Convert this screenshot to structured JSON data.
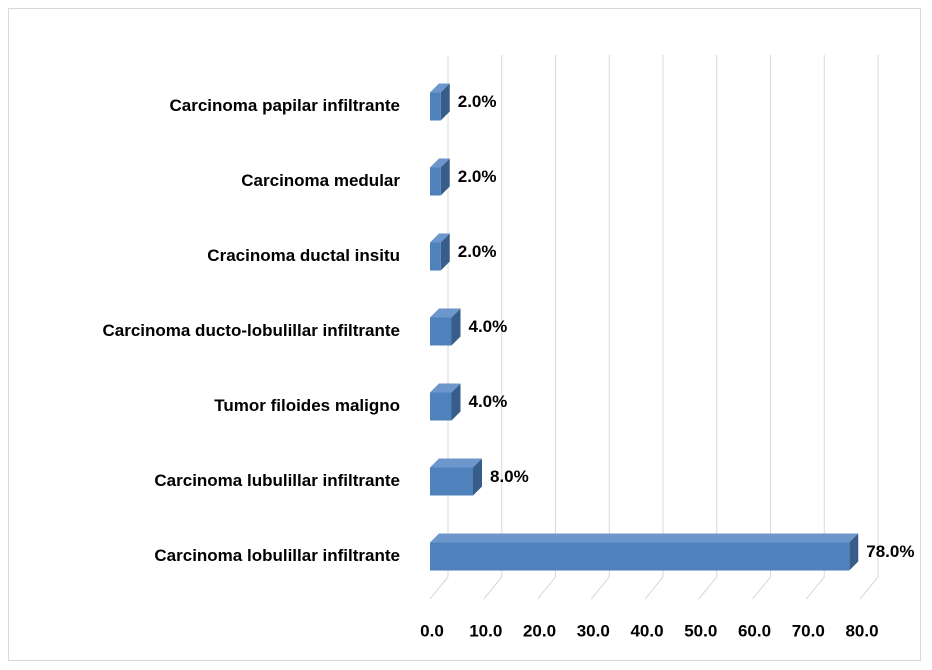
{
  "chart_data": {
    "type": "bar3d-horizontal",
    "categories": [
      "Carcinoma papilar infiltrante",
      "Carcinoma medular",
      "Cracinoma ductal insitu",
      "Carcinoma ducto-lobulillar infiltrante",
      "Tumor filoides maligno",
      "Carcinoma lubulillar infiltrante",
      "Carcinoma lobulillar infiltrante"
    ],
    "values": [
      2.0,
      2.0,
      2.0,
      4.0,
      4.0,
      8.0,
      78.0
    ],
    "value_labels": [
      "2.0%",
      "2.0%",
      "2.0%",
      "4.0%",
      "4.0%",
      "8.0%",
      "78.0%"
    ],
    "color": "#4f81bd",
    "xlim": [
      0,
      80
    ],
    "xticks": [
      {
        "value": 0,
        "label": "0.0"
      },
      {
        "value": 10,
        "label": "10.0"
      },
      {
        "value": 20,
        "label": "20.0"
      },
      {
        "value": 30,
        "label": "30.0"
      },
      {
        "value": 40,
        "label": "40.0"
      },
      {
        "value": 50,
        "label": "50.0"
      },
      {
        "value": 60,
        "label": "60.0"
      },
      {
        "value": 70,
        "label": "70.0"
      },
      {
        "value": 80,
        "label": "80.0"
      }
    ],
    "grid": true
  }
}
